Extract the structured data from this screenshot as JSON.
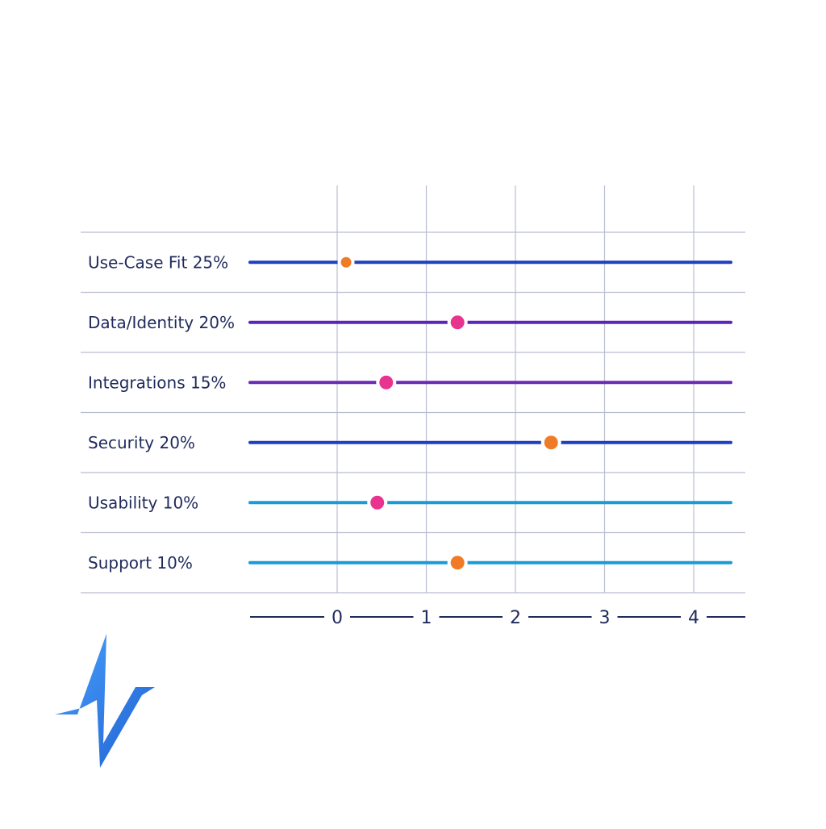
{
  "chart_data": {
    "type": "scatter",
    "title": "",
    "xlabel": "",
    "ylabel": "",
    "xlim": [
      0,
      4
    ],
    "x_ticks": [
      "0",
      "1",
      "2",
      "3",
      "4"
    ],
    "grid": true,
    "rows": [
      {
        "label": "Use-Case Fit 25%",
        "value": 0.1,
        "line_color": "#1e3fbf",
        "marker_color": "#f07b26",
        "marker": "small"
      },
      {
        "label": "Data/Identity 20%",
        "value": 1.35,
        "line_color": "#5a25b8",
        "marker_color": "#e8348f",
        "marker": "large"
      },
      {
        "label": "Integrations 15%",
        "value": 0.55,
        "line_color": "#6a2bb5",
        "marker_color": "#e8348f",
        "marker": "large"
      },
      {
        "label": "Security 20%",
        "value": 2.4,
        "line_color": "#1e3fbf",
        "marker_color": "#f07b26",
        "marker": "large"
      },
      {
        "label": "Usability 10%",
        "value": 0.45,
        "line_color": "#1a9ad6",
        "marker_color": "#e8348f",
        "marker": "large"
      },
      {
        "label": "Support 10%",
        "value": 1.35,
        "line_color": "#1a9ad6",
        "marker_color": "#f07b26",
        "marker": "large"
      }
    ]
  },
  "logo": {
    "name": "zigzag-logo-icon",
    "color": "#2a7de1"
  }
}
